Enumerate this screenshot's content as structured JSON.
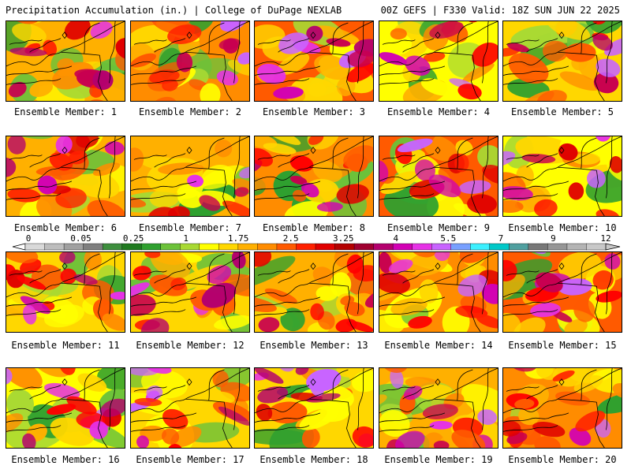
{
  "header": {
    "left": "Precipitation Accumulation (in.) | College of DuPage NEXLAB",
    "right": "00Z GEFS | F330 Valid: 18Z SUN JUN 22 2025"
  },
  "colorbar": {
    "tick_labels": [
      "0",
      "0.05",
      "0.25",
      "1",
      "1.75",
      "2.5",
      "3.25",
      "4",
      "5.5",
      "7",
      "9",
      "12"
    ],
    "colors": [
      "#d9d9d9",
      "#bdbdbd",
      "#a0a0a0",
      "#7f7f7f",
      "#3e8f3e",
      "#1f7a1f",
      "#2fa02f",
      "#6cc23a",
      "#a8d933",
      "#ffff00",
      "#ffd700",
      "#ffb000",
      "#ff8c00",
      "#ff5a00",
      "#ff2000",
      "#e00000",
      "#b40000",
      "#a00030",
      "#b4006e",
      "#d200b4",
      "#e632e6",
      "#c864ff",
      "#78a0ff",
      "#3cf0ff",
      "#00c8c8",
      "#50a0a0",
      "#787878",
      "#969696",
      "#b4b4b4",
      "#c8c8c8"
    ]
  },
  "members": [
    {
      "label": "Ensemble Member: 1"
    },
    {
      "label": "Ensemble Member: 2"
    },
    {
      "label": "Ensemble Member: 3"
    },
    {
      "label": "Ensemble Member: 4"
    },
    {
      "label": "Ensemble Member: 5"
    },
    {
      "label": "Ensemble Member: 6"
    },
    {
      "label": "Ensemble Member: 7"
    },
    {
      "label": "Ensemble Member: 8"
    },
    {
      "label": "Ensemble Member: 9"
    },
    {
      "label": "Ensemble Member: 10"
    },
    {
      "label": "Ensemble Member: 11"
    },
    {
      "label": "Ensemble Member: 12"
    },
    {
      "label": "Ensemble Member: 13"
    },
    {
      "label": "Ensemble Member: 14"
    },
    {
      "label": "Ensemble Member: 15"
    },
    {
      "label": "Ensemble Member: 16"
    },
    {
      "label": "Ensemble Member: 17"
    },
    {
      "label": "Ensemble Member: 18"
    },
    {
      "label": "Ensemble Member: 19"
    },
    {
      "label": "Ensemble Member: 20"
    }
  ]
}
